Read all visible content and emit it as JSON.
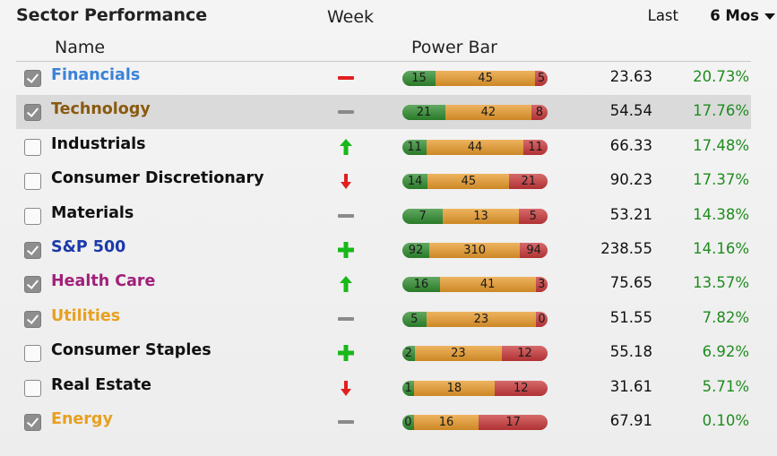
{
  "title": "Sector Performance",
  "headers": {
    "name": "Name",
    "week": "Week",
    "power": "Power Bar",
    "last": "Last",
    "mos": "6 Mos"
  },
  "colors": {
    "positive": "#1e8c1e",
    "bar_green": "#2e8b2e",
    "bar_orange": "#e89a2a",
    "bar_red": "#c8383a"
  },
  "rows": [
    {
      "name": "Financials",
      "color": "#3a82d8",
      "checked": true,
      "week": "minus-red-icon",
      "bar": [
        "15",
        "45",
        "5"
      ],
      "last": "23.63",
      "mos": "20.73%"
    },
    {
      "name": "Technology",
      "color": "#8a5a10",
      "checked": true,
      "week": "minus-gray-icon",
      "bar": [
        "21",
        "42",
        "8"
      ],
      "last": "54.54",
      "mos": "17.76%",
      "selected": true
    },
    {
      "name": "Industrials",
      "color": "#111111",
      "checked": false,
      "week": "arrow-up-green-icon",
      "bar": [
        "11",
        "44",
        "11"
      ],
      "last": "66.33",
      "mos": "17.48%"
    },
    {
      "name": "Consumer Discretionary",
      "color": "#111111",
      "checked": false,
      "week": "arrow-down-red-icon",
      "bar": [
        "14",
        "45",
        "21"
      ],
      "last": "90.23",
      "mos": "17.37%"
    },
    {
      "name": "Materials",
      "color": "#111111",
      "checked": false,
      "week": "minus-gray-icon",
      "bar": [
        "7",
        "13",
        "5"
      ],
      "last": "53.21",
      "mos": "14.38%"
    },
    {
      "name": "S&P 500",
      "color": "#1b3aa8",
      "checked": true,
      "week": "plus-green-icon",
      "bar": [
        "92",
        "310",
        "94"
      ],
      "last": "238.55",
      "mos": "14.16%"
    },
    {
      "name": "Health Care",
      "color": "#a0207a",
      "checked": true,
      "week": "arrow-up-green-icon",
      "bar": [
        "16",
        "41",
        "3"
      ],
      "last": "75.65",
      "mos": "13.57%"
    },
    {
      "name": "Utilities",
      "color": "#e8a020",
      "checked": true,
      "week": "minus-gray-icon",
      "bar": [
        "5",
        "23",
        "0"
      ],
      "last": "51.55",
      "mos": "7.82%"
    },
    {
      "name": "Consumer Staples",
      "color": "#111111",
      "checked": false,
      "week": "plus-green-icon",
      "bar": [
        "2",
        "23",
        "12"
      ],
      "last": "55.18",
      "mos": "6.92%"
    },
    {
      "name": "Real Estate",
      "color": "#111111",
      "checked": false,
      "week": "arrow-down-red-icon",
      "bar": [
        "1",
        "18",
        "12"
      ],
      "last": "31.61",
      "mos": "5.71%"
    },
    {
      "name": "Energy",
      "color": "#e8a020",
      "checked": true,
      "week": "minus-gray-icon",
      "bar": [
        "0",
        "16",
        "17"
      ],
      "last": "67.91",
      "mos": "0.10%"
    }
  ]
}
